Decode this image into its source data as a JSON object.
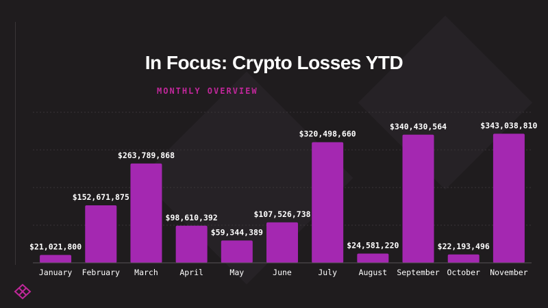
{
  "title": "In Focus: Crypto Losses YTD",
  "subtitle": "MONTHLY OVERVIEW",
  "colors": {
    "bar": "#a428b1",
    "accent": "#c0279a",
    "background": "#1f1c1e",
    "text": "#ffffff",
    "grid": "#3a3538"
  },
  "logo": "diamond-lattice-logo",
  "chart_data": {
    "type": "bar",
    "title": "In Focus: Crypto Losses YTD",
    "subtitle": "MONTHLY OVERVIEW",
    "xlabel": "",
    "ylabel": "",
    "categories": [
      "January",
      "February",
      "March",
      "April",
      "May",
      "June",
      "July",
      "August",
      "September",
      "October",
      "November"
    ],
    "values": [
      21021800,
      152671875,
      263789868,
      98610392,
      59344389,
      107526738,
      320498660,
      24581220,
      340430564,
      22193496,
      343038810
    ],
    "labels": [
      "$21,021,800",
      "$152,671,875",
      "$263,789,868",
      "$98,610,392",
      "$59,344,389",
      "$107,526,738",
      "$320,498,660",
      "$24,581,220",
      "$340,430,564",
      "$22,193,496",
      "$343,038,810"
    ],
    "ylim": [
      0,
      400000000
    ],
    "grid": true,
    "legend": "none"
  }
}
